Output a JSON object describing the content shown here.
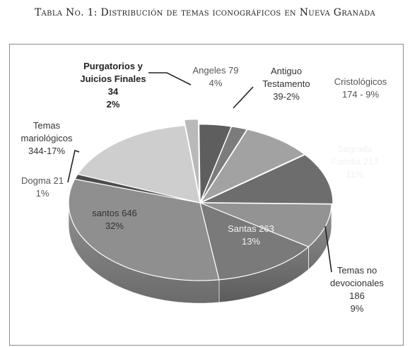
{
  "caption": "Tabla No. 1: Distribución de temas iconográficos en Nueva Granada",
  "chart_data": {
    "type": "pie",
    "title": "",
    "slices": [
      {
        "name": "Angeles",
        "value": 79,
        "label": [
          "Angeles 79",
          "4%"
        ],
        "color": "#5e5e5e"
      },
      {
        "name": "Antiguo Testamento",
        "value": 39,
        "label": [
          "Antiguo",
          "Testamento",
          "39-2%"
        ],
        "color": "#7c7c7c"
      },
      {
        "name": "Cristológicos",
        "value": 174,
        "label": [
          "Cristológicos",
          "174 - 9%"
        ],
        "color": "#a2a2a2"
      },
      {
        "name": "Sagrada Familia",
        "value": 217,
        "label": [
          "Sagrada",
          "Familia 217",
          "11%"
        ],
        "color": "#6d6d6d"
      },
      {
        "name": "Temas no devocionales",
        "value": 186,
        "label": [
          "Temas no",
          "devocionales",
          "186",
          "9%"
        ],
        "color": "#939393"
      },
      {
        "name": "Santas",
        "value": 263,
        "label": [
          "Santas 263",
          "13%"
        ],
        "color": "#7a7a7a"
      },
      {
        "name": "santos",
        "value": 646,
        "label": [
          "santos 646",
          "32%"
        ],
        "color": "#8f8f8f"
      },
      {
        "name": "Dogma",
        "value": 21,
        "label": [
          "Dogma 21",
          "1%"
        ],
        "color": "#4c4c4c"
      },
      {
        "name": "Temas mariológicos",
        "value": 344,
        "label": [
          "Temas",
          "mariológicos",
          "344-17%"
        ],
        "color": "#cecece"
      },
      {
        "name": "Purgatorios y Juicios Finales",
        "value": 34,
        "label": [
          "Purgatorios y",
          "Juicios Finales",
          "34",
          "2%"
        ],
        "color": "#b9b9b9"
      }
    ]
  }
}
